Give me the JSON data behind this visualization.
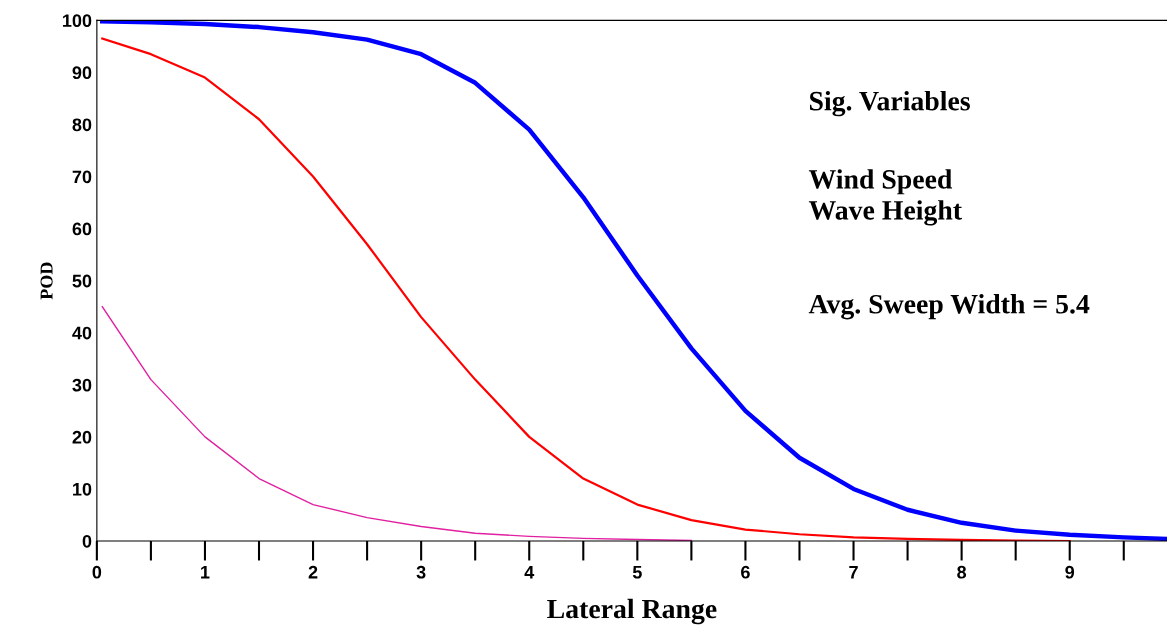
{
  "chart_data": {
    "type": "line",
    "xlabel": "Lateral Range",
    "ylabel": "POD",
    "xlim": [
      0,
      9.9
    ],
    "ylim": [
      0,
      100
    ],
    "xticks": [
      0,
      1,
      2,
      3,
      4,
      5,
      6,
      7,
      8,
      9
    ],
    "yticks": [
      0,
      10,
      20,
      30,
      40,
      50,
      60,
      70,
      80,
      90,
      100
    ],
    "grid": false,
    "legend": false,
    "marker": "none",
    "line_style": "solid",
    "annotations": [
      "Sig. Variables",
      "Wind Speed\nWave Height",
      "Avg. Sweep Width = 5.4"
    ],
    "series": [
      {
        "color": "#0000ff",
        "x": [
          0.05,
          0.5,
          1,
          1.5,
          2,
          2.5,
          3,
          3.5,
          4,
          4.5,
          5,
          5.5,
          6,
          6.5,
          7,
          7.5,
          8,
          8.5,
          9,
          9.5,
          9.9
        ],
        "values": [
          99.8,
          99.6,
          99.3,
          98.7,
          97.7,
          96.3,
          93.5,
          88,
          79,
          66,
          51,
          37,
          25,
          16,
          10,
          6,
          3.5,
          2,
          1.2,
          0.7,
          0.4
        ]
      },
      {
        "color": "#ff0000",
        "x": [
          0.05,
          0.5,
          1,
          1.5,
          2,
          2.5,
          3,
          3.5,
          4,
          4.5,
          5,
          5.5,
          6,
          6.5,
          7,
          7.5,
          8,
          8.5,
          9
        ],
        "values": [
          96.5,
          93.5,
          89,
          81,
          70,
          57,
          43,
          31,
          20,
          12,
          7,
          4,
          2.2,
          1.3,
          0.7,
          0.4,
          0.2,
          0.1,
          0
        ]
      },
      {
        "color": "#e020a0",
        "x": [
          0.05,
          0.5,
          1,
          1.5,
          2,
          2.5,
          3,
          3.5,
          4,
          4.5,
          5,
          5.5
        ],
        "values": [
          45,
          31,
          20,
          12,
          7,
          4.5,
          2.8,
          1.5,
          0.9,
          0.5,
          0.3,
          0.1
        ]
      }
    ]
  }
}
